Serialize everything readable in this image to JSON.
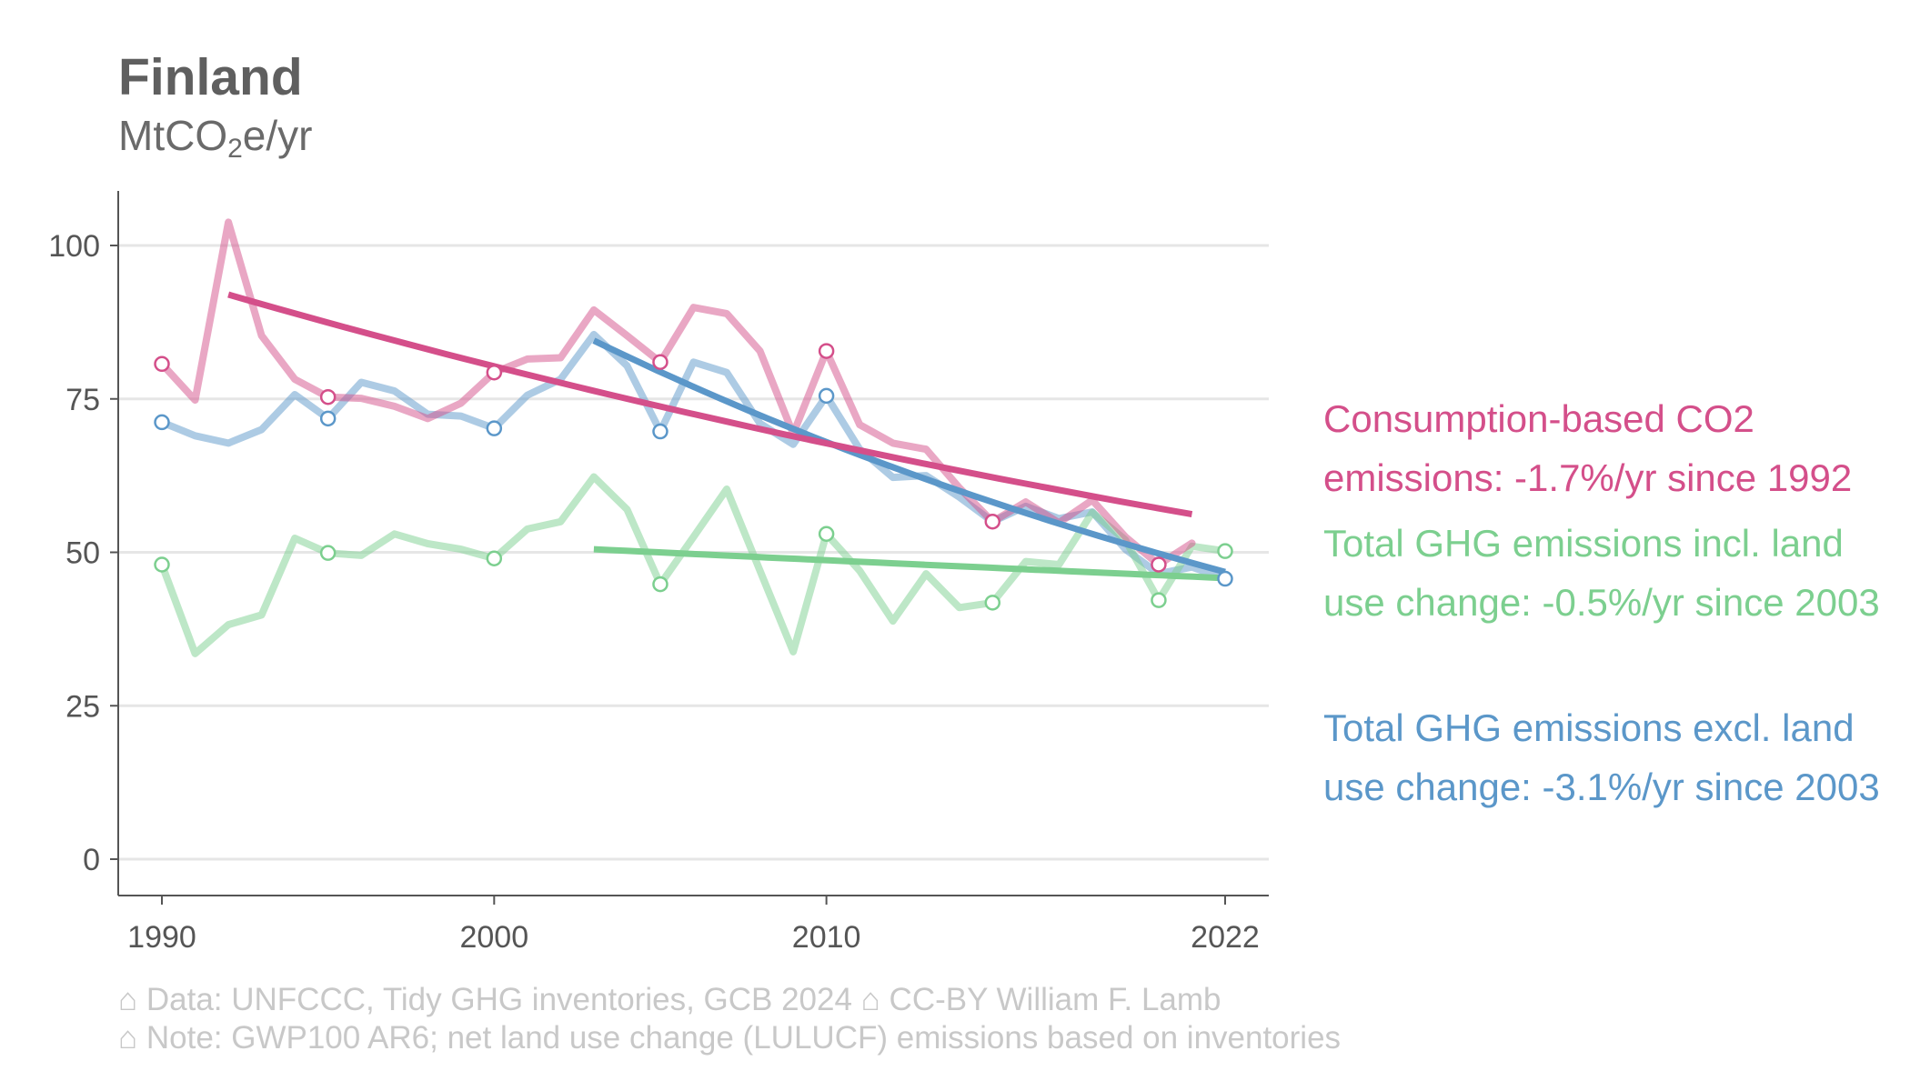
{
  "header": {
    "title": "Finland",
    "unit_main": "MtCO",
    "unit_sub": "2",
    "unit_tail": "e/yr"
  },
  "colors": {
    "consumption": "#d44f8a",
    "incl_luc": "#7ccf8f",
    "excl_luc": "#5b97c9",
    "grid": "#e6e6e6",
    "axis": "#555555",
    "tick_label": "#555555",
    "footer": "#c8c8c8"
  },
  "legend": {
    "consumption": "Consumption-based CO2 emissions: -1.7%/yr since 1992",
    "incl_luc": "Total GHG emissions incl. land use change: -0.5%/yr since 2003",
    "excl_luc": "Total GHG emissions excl. land use change: -3.1%/yr since 2003"
  },
  "footer": {
    "line1": "⌂ Data: UNFCCC, Tidy GHG inventories, GCB 2024   ⌂ CC-BY William F. Lamb",
    "line2": "⌂ Note: GWP100 AR6; net land use change (LULUCF) emissions based on inventories"
  },
  "chart_data": {
    "type": "line",
    "title": "Finland",
    "ylabel": "MtCO2e/yr",
    "xlim": [
      1988.6,
      2022.3
    ],
    "ylim": [
      -5,
      109
    ],
    "x_ticks": [
      1990,
      2000,
      2010,
      2022
    ],
    "y_ticks": [
      0,
      25,
      50,
      75,
      100
    ],
    "grid": "horizontal",
    "legend_position": "right",
    "series": [
      {
        "key": "excl_luc",
        "name": "Total GHG emissions excl. land use change",
        "x": [
          1990,
          1991,
          1992,
          1993,
          1994,
          1995,
          1996,
          1997,
          1998,
          1999,
          2000,
          2001,
          2002,
          2003,
          2004,
          2005,
          2006,
          2007,
          2008,
          2009,
          2010,
          2011,
          2012,
          2013,
          2014,
          2015,
          2016,
          2017,
          2018,
          2019,
          2020,
          2021,
          2022
        ],
        "y": [
          71.2,
          69,
          67.8,
          70,
          75.7,
          71.8,
          77.7,
          76.3,
          72.5,
          72.2,
          70.2,
          75.6,
          78.2,
          85.5,
          80.4,
          69.7,
          81,
          79.3,
          71,
          67.6,
          75.5,
          66.8,
          62.2,
          62.5,
          59,
          55,
          57.5,
          55.5,
          56.6,
          50.5,
          46.5,
          47.6,
          45.7
        ],
        "markers_at": [
          1990,
          1995,
          2000,
          2005,
          2010,
          2022
        ],
        "trend": {
          "start_year": 2003,
          "end_year": 2022,
          "start_value": 84.5,
          "end_value": 46.8,
          "label": "-3.1%/yr since 2003"
        }
      },
      {
        "key": "incl_luc",
        "name": "Total GHG emissions incl. land use change",
        "x": [
          1990,
          1991,
          1992,
          1993,
          1994,
          1995,
          1996,
          1997,
          1998,
          1999,
          2000,
          2001,
          2002,
          2003,
          2004,
          2005,
          2006,
          2007,
          2008,
          2009,
          2010,
          2011,
          2012,
          2013,
          2014,
          2015,
          2016,
          2017,
          2018,
          2019,
          2020,
          2021,
          2022
        ],
        "y": [
          48,
          33.5,
          38.2,
          39.8,
          52.3,
          49.9,
          49.5,
          53,
          51.4,
          50.5,
          49,
          53.8,
          55,
          62.3,
          57,
          44.8,
          52.5,
          60.3,
          47,
          33.8,
          53,
          47,
          38.8,
          46.5,
          41,
          41.8,
          48.5,
          48,
          56.5,
          52,
          42.2,
          51,
          50.2
        ],
        "markers_at": [
          1990,
          1995,
          2000,
          2005,
          2010,
          2015,
          2020,
          2022
        ],
        "trend": {
          "start_year": 2003,
          "end_year": 2022,
          "start_value": 50.5,
          "end_value": 45.8,
          "label": "-0.5%/yr since 2003"
        }
      },
      {
        "key": "consumption",
        "name": "Consumption-based CO2 emissions",
        "x": [
          1990,
          1991,
          1992,
          1993,
          1994,
          1995,
          1996,
          1997,
          1998,
          1999,
          2000,
          2001,
          2002,
          2003,
          2004,
          2005,
          2006,
          2007,
          2008,
          2009,
          2010,
          2011,
          2012,
          2013,
          2014,
          2015,
          2016,
          2017,
          2018,
          2019,
          2020,
          2021
        ],
        "y": [
          80.7,
          74.8,
          103.8,
          85.3,
          78.2,
          75.3,
          75.1,
          73.8,
          71.8,
          74.3,
          79.3,
          81.5,
          81.7,
          89.5,
          85.3,
          81,
          89.9,
          88.9,
          82.8,
          69.3,
          82.8,
          70.8,
          67.8,
          66.8,
          60.5,
          55,
          58.2,
          54.8,
          58.5,
          52.5,
          48,
          51.5
        ],
        "markers_at": [
          1990,
          1995,
          2000,
          2005,
          2010,
          2015,
          2020
        ],
        "trend": {
          "start_year": 1992,
          "end_year": 2021,
          "start_value": 92,
          "end_value": 56.2,
          "label": "-1.7%/yr since 1992"
        }
      }
    ]
  }
}
